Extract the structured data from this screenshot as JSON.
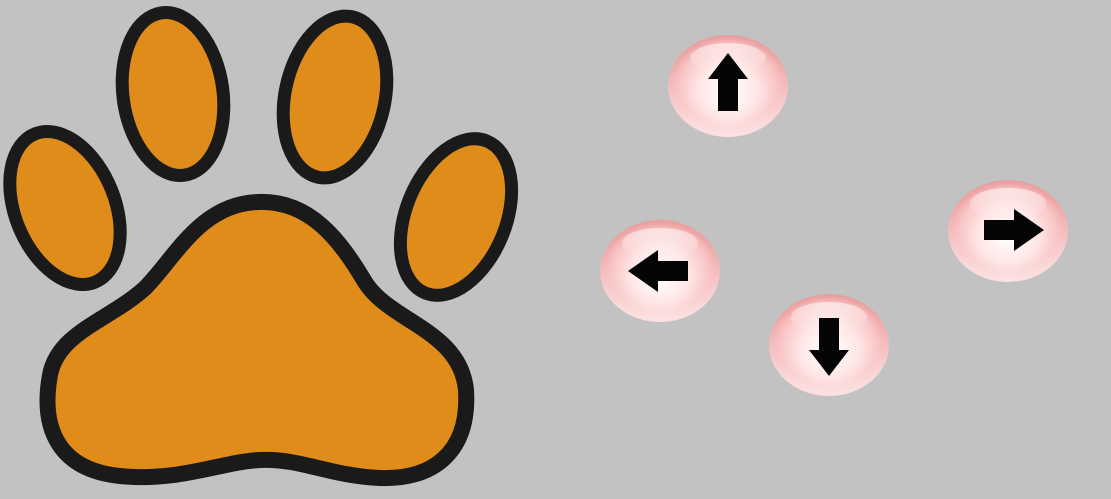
{
  "colors": {
    "background": "#c2c2c2",
    "paw_fill": "#e08c1a",
    "paw_outline": "#1a1a1a",
    "arrow": "#050505"
  },
  "icons": {
    "paw": "paw-print-icon",
    "up": "arrow-up-icon",
    "down": "arrow-down-icon",
    "left": "arrow-left-icon",
    "right": "arrow-right-icon"
  }
}
